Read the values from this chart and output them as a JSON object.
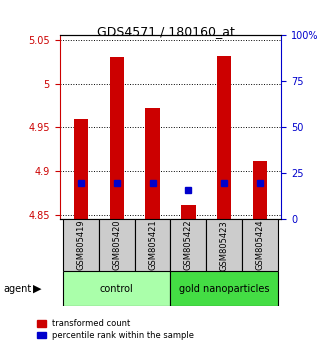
{
  "title": "GDS4571 / 180160_at",
  "samples": [
    "GSM805419",
    "GSM805420",
    "GSM805421",
    "GSM805422",
    "GSM805423",
    "GSM805424"
  ],
  "groups": [
    "control",
    "control",
    "control",
    "gold nanoparticles",
    "gold nanoparticles",
    "gold nanoparticles"
  ],
  "group_labels": [
    "control",
    "gold nanoparticles"
  ],
  "group_colors": [
    "#aaffaa",
    "#44dd44"
  ],
  "red_values": [
    4.96,
    5.03,
    4.972,
    4.862,
    5.032,
    4.912
  ],
  "blue_values": [
    4.887,
    4.887,
    4.887,
    4.879,
    4.887,
    4.887
  ],
  "ylim_left": [
    4.845,
    5.055
  ],
  "ylim_right": [
    0,
    100
  ],
  "yticks_left": [
    4.85,
    4.9,
    4.95,
    5.0,
    5.05
  ],
  "yticks_right": [
    0,
    25,
    50,
    75,
    100
  ],
  "ytick_labels_left": [
    "4.85",
    "4.9",
    "4.95",
    "5",
    "5.05"
  ],
  "ytick_labels_right": [
    "0",
    "25",
    "50",
    "75",
    "100%"
  ],
  "bar_width": 0.4,
  "red_color": "#cc0000",
  "blue_color": "#0000cc",
  "grid_color": "#000000",
  "bg_plot": "#ffffff",
  "bg_xticklabels": "#d3d3d3",
  "left_axis_color": "#cc0000",
  "right_axis_color": "#0000cc",
  "legend_red_label": "transformed count",
  "legend_blue_label": "percentile rank within the sample",
  "agent_label": "agent",
  "bar_bottom": 4.845
}
